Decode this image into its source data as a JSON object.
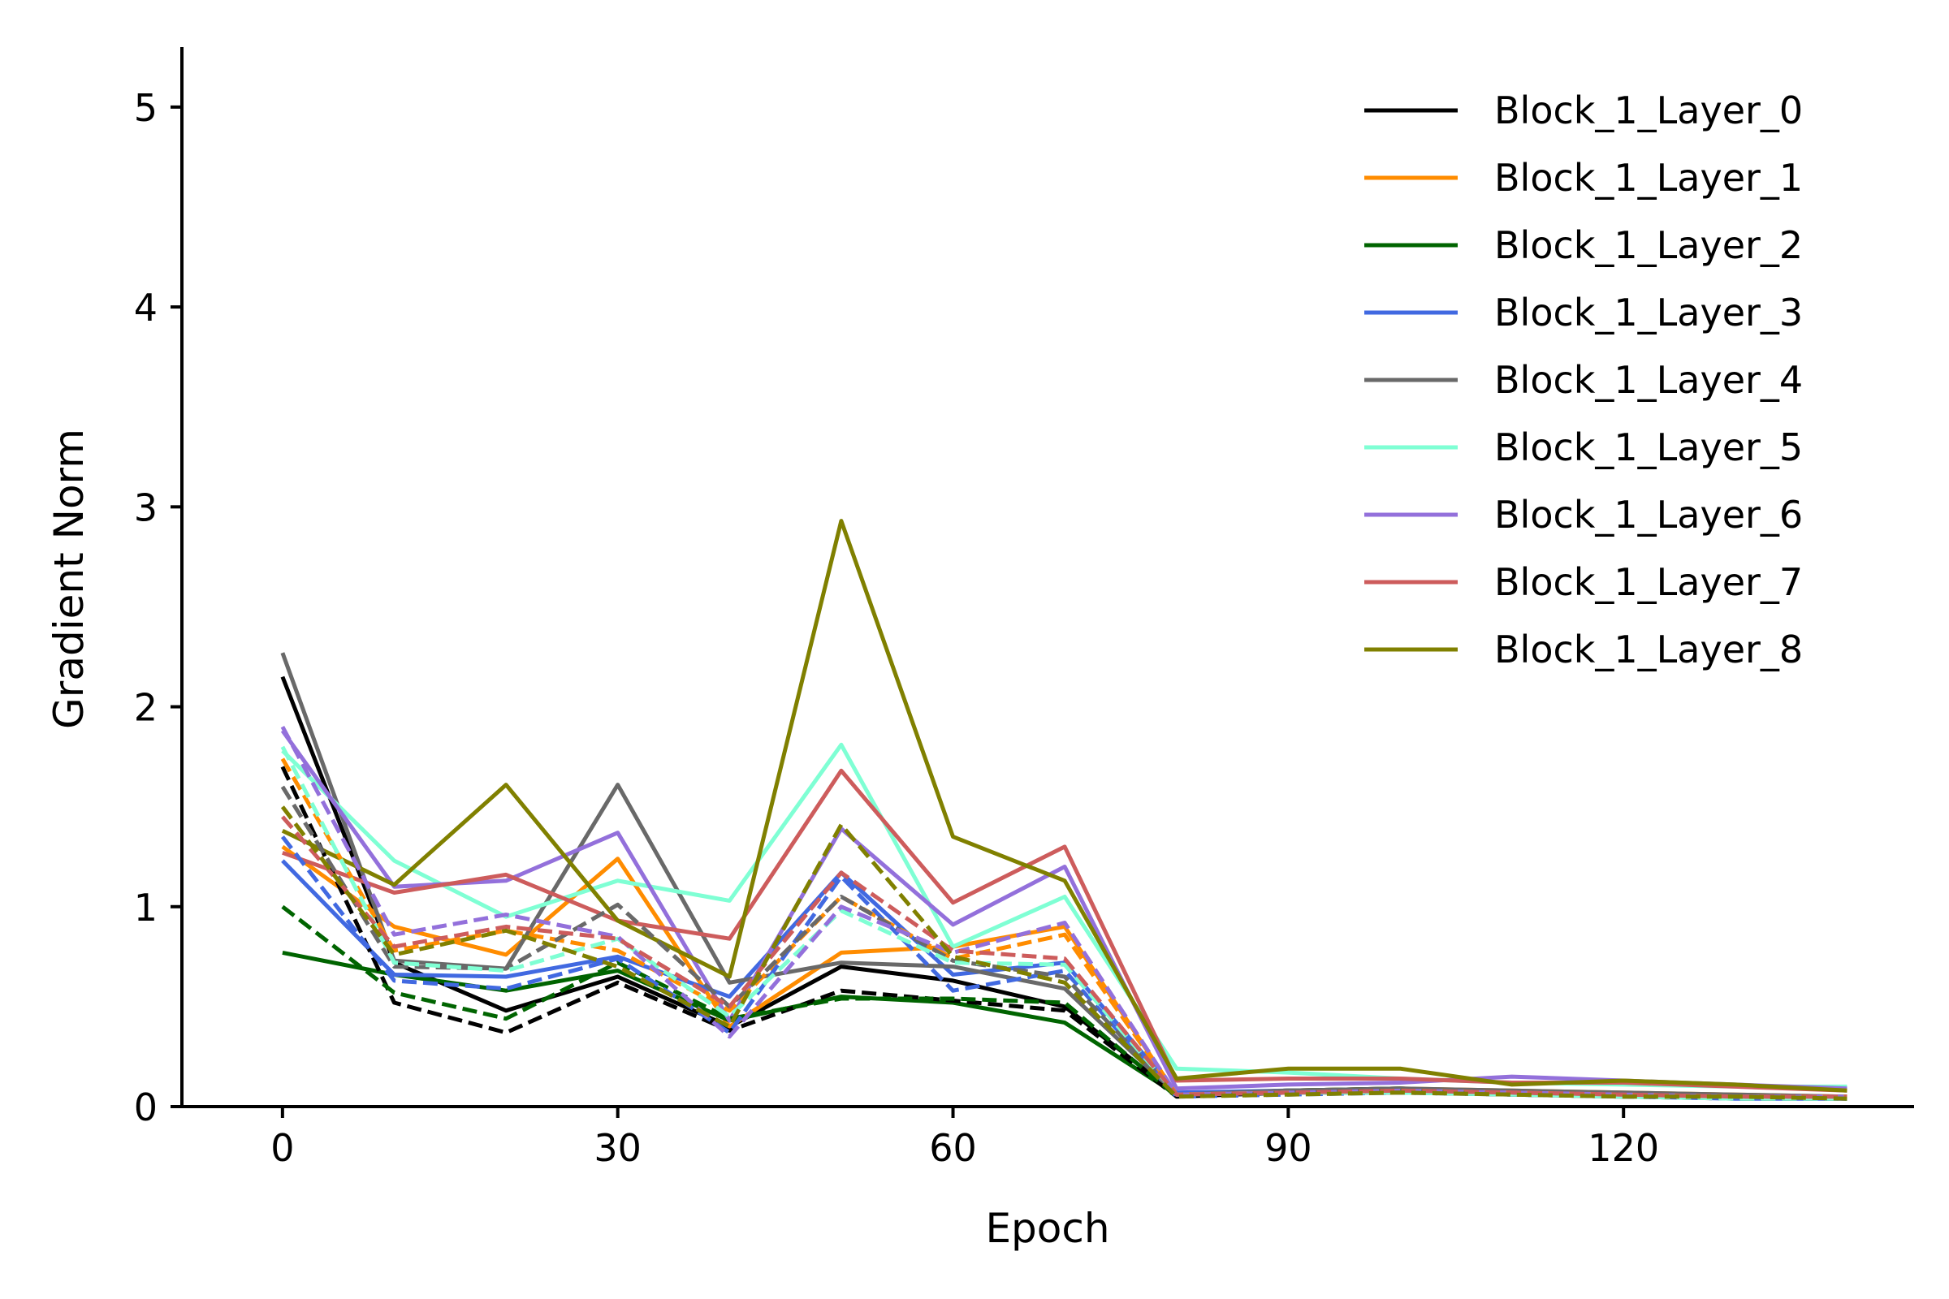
{
  "chart_data": {
    "type": "line",
    "xlabel": "Epoch",
    "ylabel": "Gradient Norm",
    "xlim": [
      -9,
      146
    ],
    "ylim": [
      0,
      5.3
    ],
    "xticks": [
      0,
      30,
      60,
      90,
      120
    ],
    "yticks": [
      0,
      1,
      2,
      3,
      4,
      5
    ],
    "x": [
      0,
      10,
      20,
      30,
      40,
      50,
      60,
      70,
      80,
      90,
      100,
      110,
      120,
      130,
      140
    ],
    "legend": {
      "position": "top-right"
    },
    "grid": false,
    "series": [
      {
        "name": "Block_1_Layer_0",
        "color": "#000000",
        "style": "solid",
        "values": [
          2.15,
          0.72,
          0.48,
          0.65,
          0.4,
          0.7,
          0.63,
          0.5,
          0.06,
          0.08,
          0.09,
          0.07,
          0.06,
          0.05,
          0.05
        ]
      },
      {
        "name": "Block_1_Layer_1",
        "color": "#ff8c00",
        "style": "solid",
        "values": [
          1.3,
          0.9,
          0.76,
          1.24,
          0.4,
          0.77,
          0.8,
          0.9,
          0.06,
          0.08,
          0.09,
          0.08,
          0.07,
          0.06,
          0.05
        ]
      },
      {
        "name": "Block_1_Layer_2",
        "color": "#006400",
        "style": "solid",
        "values": [
          0.77,
          0.66,
          0.58,
          0.68,
          0.43,
          0.55,
          0.52,
          0.42,
          0.06,
          0.08,
          0.09,
          0.07,
          0.06,
          0.05,
          0.05
        ]
      },
      {
        "name": "Block_1_Layer_3",
        "color": "#4169e1",
        "style": "solid",
        "values": [
          1.23,
          0.66,
          0.65,
          0.75,
          0.55,
          1.17,
          0.66,
          0.72,
          0.07,
          0.08,
          0.08,
          0.07,
          0.06,
          0.05,
          0.05
        ]
      },
      {
        "name": "Block_1_Layer_4",
        "color": "#696969",
        "style": "solid",
        "values": [
          2.27,
          0.73,
          0.69,
          1.61,
          0.62,
          0.72,
          0.7,
          0.59,
          0.06,
          0.08,
          0.09,
          0.08,
          0.07,
          0.06,
          0.05
        ]
      },
      {
        "name": "Block_1_Layer_5",
        "color": "#7fffd4",
        "style": "solid",
        "values": [
          1.78,
          1.23,
          0.95,
          1.13,
          1.03,
          1.81,
          0.8,
          1.05,
          0.19,
          0.17,
          0.14,
          0.12,
          0.11,
          0.1,
          0.1
        ]
      },
      {
        "name": "Block_1_Layer_6",
        "color": "#9370db",
        "style": "solid",
        "values": [
          1.88,
          1.1,
          1.13,
          1.37,
          0.43,
          1.39,
          0.91,
          1.2,
          0.09,
          0.11,
          0.12,
          0.15,
          0.13,
          0.11,
          0.09
        ]
      },
      {
        "name": "Block_1_Layer_7",
        "color": "#cd5c5c",
        "style": "solid",
        "values": [
          1.27,
          1.07,
          1.16,
          0.93,
          0.84,
          1.68,
          1.02,
          1.3,
          0.13,
          0.14,
          0.14,
          0.12,
          0.12,
          0.1,
          0.08
        ]
      },
      {
        "name": "Block_1_Layer_8",
        "color": "#808000",
        "style": "solid",
        "values": [
          1.38,
          1.11,
          1.61,
          0.93,
          0.65,
          2.93,
          1.35,
          1.13,
          0.14,
          0.19,
          0.19,
          0.11,
          0.13,
          0.11,
          0.08
        ]
      },
      {
        "color": "#000000",
        "style": "dashed",
        "values": [
          1.7,
          0.52,
          0.37,
          0.62,
          0.38,
          0.58,
          0.53,
          0.48,
          0.05,
          0.07,
          0.07,
          0.06,
          0.05,
          0.04,
          0.04
        ]
      },
      {
        "color": "#ff8c00",
        "style": "dashed",
        "values": [
          1.74,
          0.78,
          0.88,
          0.78,
          0.48,
          1.05,
          0.74,
          0.86,
          0.06,
          0.07,
          0.08,
          0.07,
          0.06,
          0.05,
          0.05
        ]
      },
      {
        "color": "#006400",
        "style": "dashed",
        "values": [
          1.0,
          0.57,
          0.44,
          0.72,
          0.44,
          0.54,
          0.54,
          0.52,
          0.05,
          0.07,
          0.08,
          0.06,
          0.05,
          0.05,
          0.04
        ]
      },
      {
        "color": "#4169e1",
        "style": "dashed",
        "values": [
          1.35,
          0.63,
          0.59,
          0.74,
          0.37,
          1.15,
          0.58,
          0.68,
          0.05,
          0.06,
          0.07,
          0.06,
          0.05,
          0.04,
          0.04
        ]
      },
      {
        "color": "#696969",
        "style": "dashed",
        "values": [
          1.6,
          0.7,
          0.69,
          1.01,
          0.5,
          1.05,
          0.73,
          0.65,
          0.06,
          0.07,
          0.08,
          0.07,
          0.06,
          0.05,
          0.05
        ]
      },
      {
        "color": "#7fffd4",
        "style": "dashed",
        "values": [
          1.8,
          0.72,
          0.68,
          0.84,
          0.45,
          0.98,
          0.72,
          0.71,
          0.06,
          0.07,
          0.07,
          0.06,
          0.05,
          0.04,
          0.04
        ]
      },
      {
        "color": "#9370db",
        "style": "dashed",
        "values": [
          1.9,
          0.86,
          0.96,
          0.85,
          0.35,
          1.0,
          0.77,
          0.92,
          0.06,
          0.07,
          0.08,
          0.07,
          0.06,
          0.05,
          0.05
        ]
      },
      {
        "color": "#cd5c5c",
        "style": "dashed",
        "values": [
          1.45,
          0.8,
          0.9,
          0.84,
          0.5,
          1.17,
          0.78,
          0.74,
          0.06,
          0.07,
          0.08,
          0.07,
          0.06,
          0.05,
          0.05
        ]
      },
      {
        "color": "#808000",
        "style": "dashed",
        "values": [
          1.5,
          0.76,
          0.88,
          0.7,
          0.4,
          1.41,
          0.75,
          0.62,
          0.05,
          0.06,
          0.07,
          0.06,
          0.05,
          0.05,
          0.04
        ]
      }
    ]
  }
}
